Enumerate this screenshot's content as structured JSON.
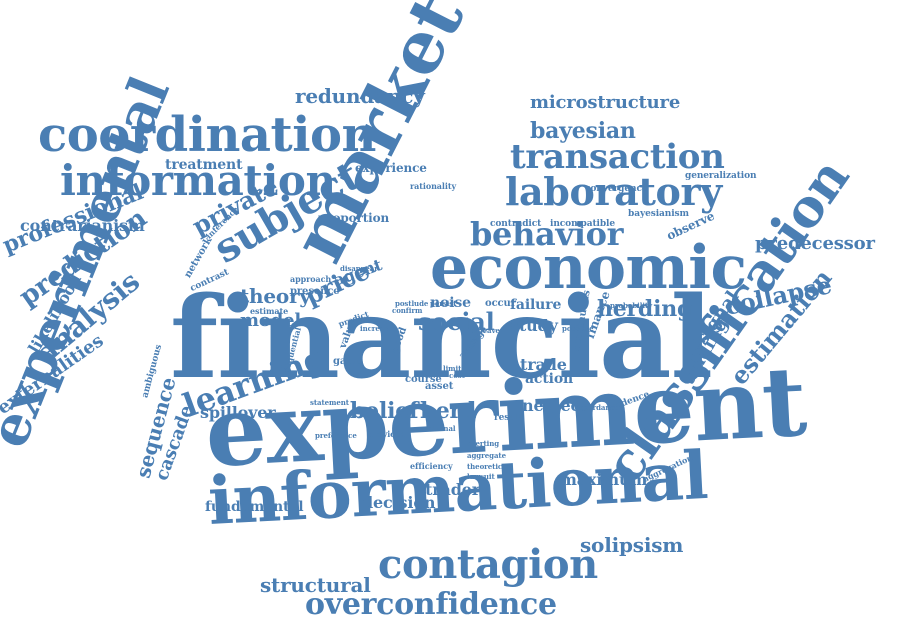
{
  "palette": {
    "word": "#4a7eb3",
    "background": "#ffffff"
  },
  "words": [
    "financial",
    "experiment",
    "informational",
    "market",
    "economic",
    "classification",
    "experimental",
    "coordination",
    "information",
    "contagion",
    "overconfidence",
    "laboratory",
    "transaction",
    "behavior",
    "subject",
    "learning",
    "analysis",
    "prediction",
    "professional",
    "social",
    "herding",
    "collapse",
    "estimation",
    "microstructure",
    "bayesian",
    "redundancy",
    "private",
    "theory",
    "model",
    "price",
    "belief",
    "herd",
    "structural",
    "solipsism",
    "sequence",
    "cascade",
    "trading",
    "signal",
    "externalities",
    "likelihood",
    "contrarianism",
    "predecessor",
    "maximum",
    "trader",
    "decision",
    "spillover",
    "fundamental",
    "study",
    "trade",
    "action",
    "neglect",
    "noise",
    "failure",
    "agent",
    "treatment",
    "experience",
    "rationality",
    "convergence",
    "generalization",
    "proportion",
    "network",
    "contrast",
    "inference",
    "bayesianism",
    "observe",
    "contradict",
    "incompatible",
    "approach",
    "presence",
    "estimate",
    "ambiguous",
    "efficiency",
    "aggregation",
    "evidence",
    "asset",
    "game",
    "occur",
    "possible",
    "probability",
    "finance",
    "continuous",
    "accordance",
    "previous",
    "averting",
    "aggregate",
    "theoretical",
    "lawsuit",
    "rational",
    "result",
    "statement",
    "preference",
    "sequential",
    "value",
    "predict",
    "bias",
    "disappear",
    "good",
    "average",
    "persist",
    "confirm",
    "postlude",
    "increase",
    "course",
    "limit",
    "cost",
    "leave",
    "market",
    "signal"
  ]
}
